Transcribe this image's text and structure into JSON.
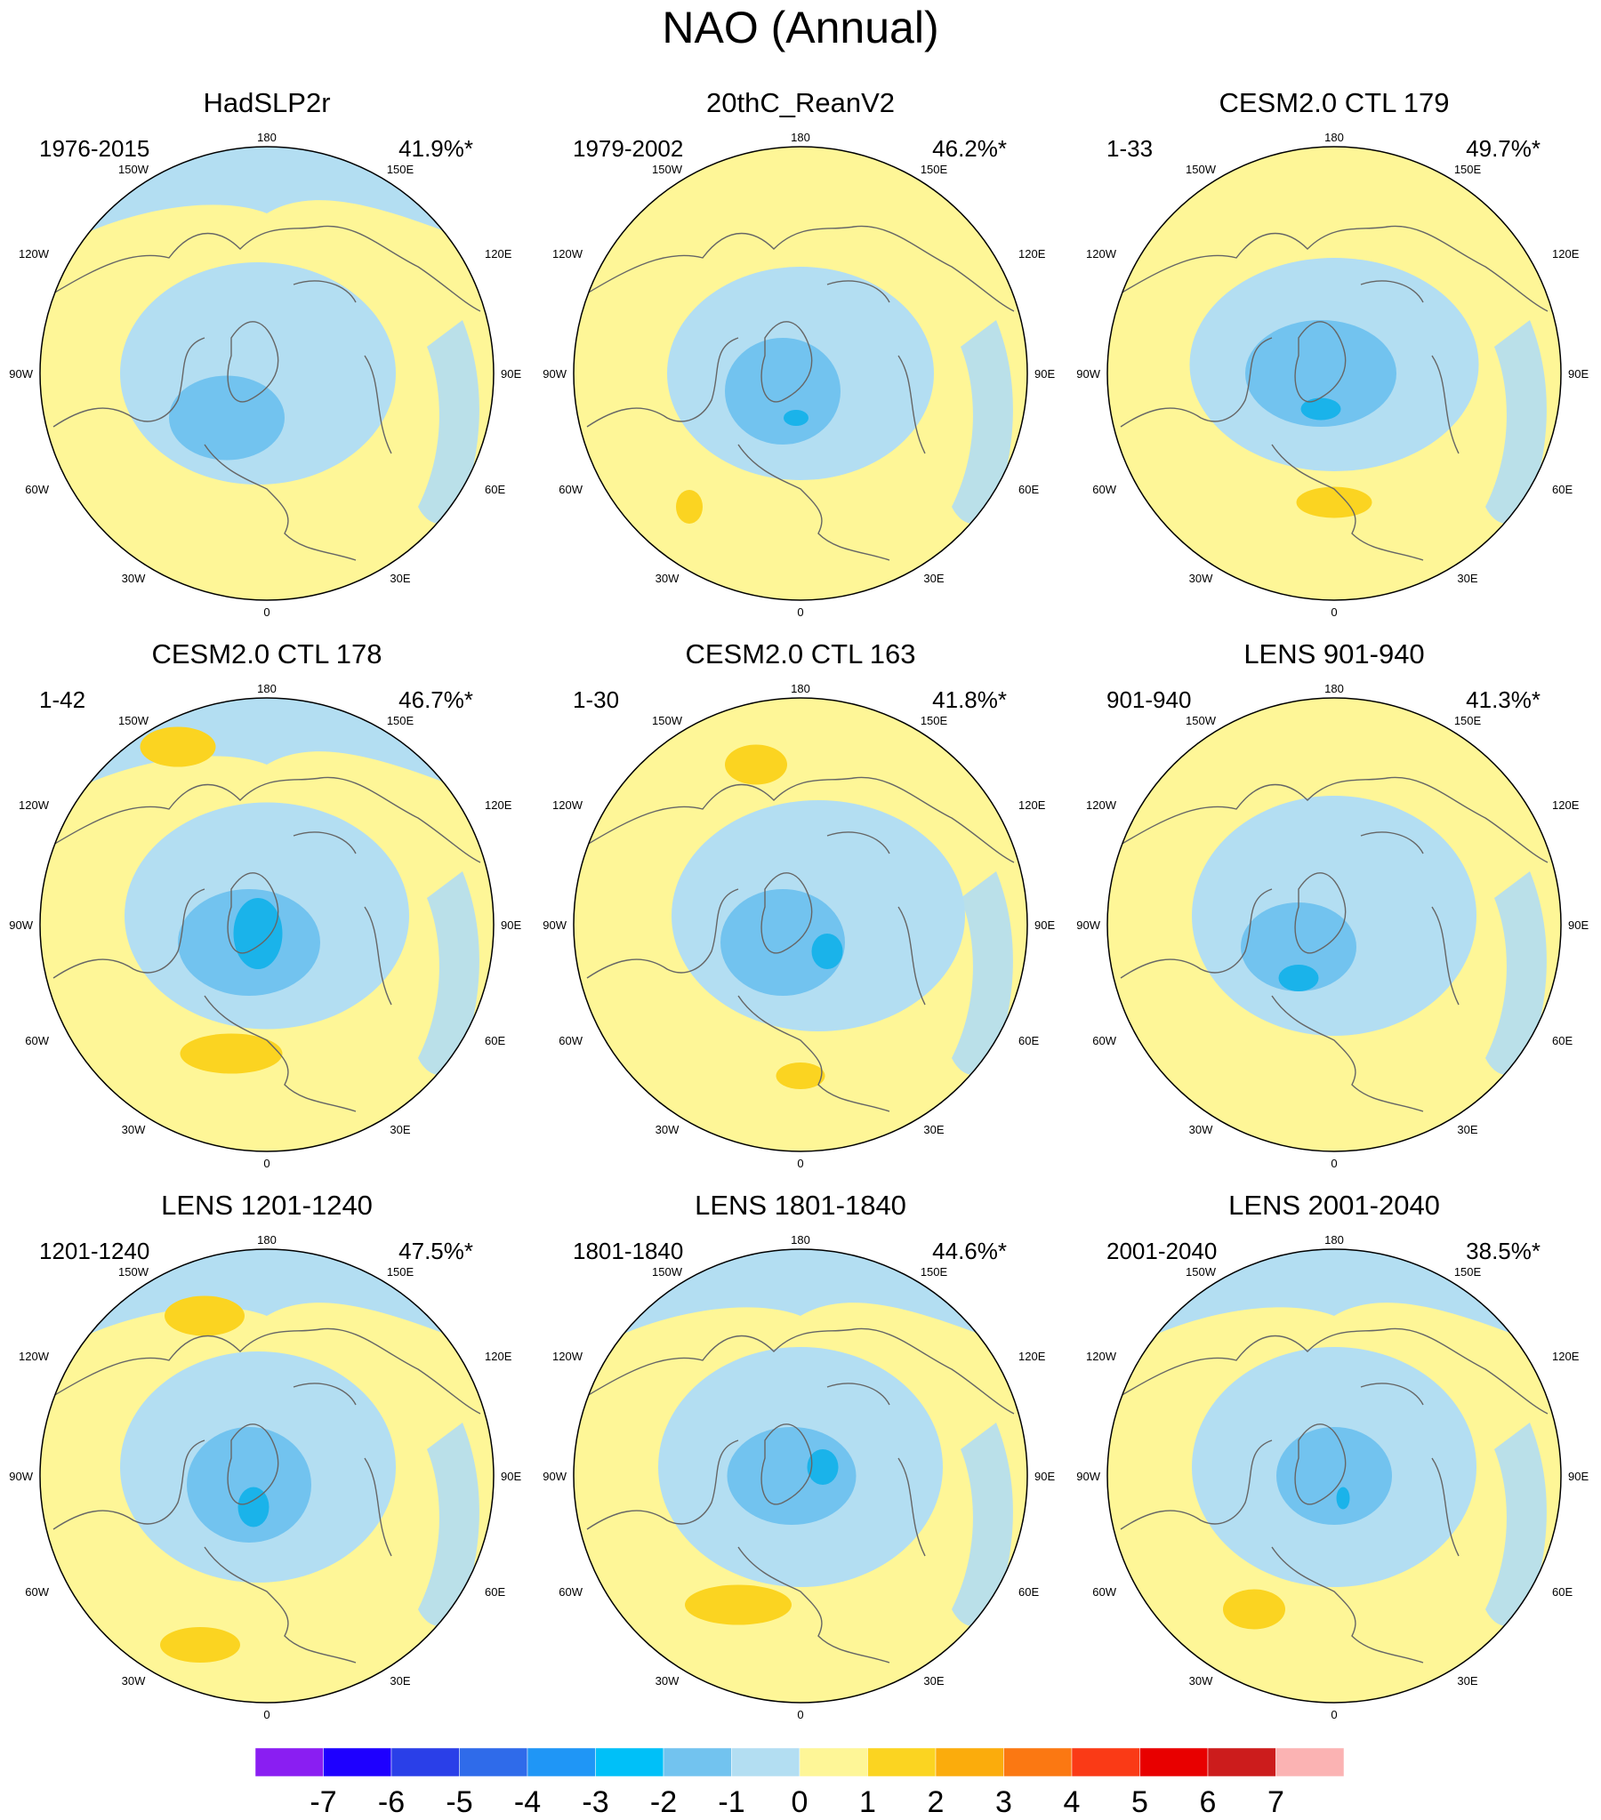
{
  "figure": {
    "title": "NAO (Annual)"
  },
  "colors": {
    "land": "#fef697",
    "ocean_neg1": "#b3def2",
    "neg2": "#72c3ef",
    "neg3": "#1ab3ea",
    "pos1": "#fbd421",
    "outline": "#000000",
    "coast": "#666666"
  },
  "longitude_labels": {
    "top": "180",
    "bottom": "0",
    "left_mid": "90W",
    "right_mid": "90E",
    "upper_left": "150W",
    "upper_right": "150E",
    "mid_left_high": "120W",
    "mid_right_high": "120E",
    "mid_left_low": "60W",
    "mid_right_low": "60E",
    "lower_left": "30W",
    "lower_right": "30E"
  },
  "panels": [
    {
      "title": "HadSLP2r",
      "period": "1976-2015",
      "variance": "41.9%*"
    },
    {
      "title": "20thC_ReanV2",
      "period": "1979-2002",
      "variance": "46.2%*"
    },
    {
      "title": "CESM2.0 CTL 179",
      "period": "1-33",
      "variance": "49.7%*"
    },
    {
      "title": "CESM2.0 CTL 178",
      "period": "1-42",
      "variance": "46.7%*"
    },
    {
      "title": "CESM2.0 CTL 163",
      "period": "1-30",
      "variance": "41.8%*"
    },
    {
      "title": "LENS 901-940",
      "period": "901-940",
      "variance": "41.3%*"
    },
    {
      "title": "LENS 1201-1240",
      "period": "1201-1240",
      "variance": "47.5%*"
    },
    {
      "title": "LENS 1801-1840",
      "period": "1801-1840",
      "variance": "44.6%*"
    },
    {
      "title": "LENS 2001-2040",
      "period": "2001-2040",
      "variance": "38.5%*"
    }
  ],
  "colorbar": {
    "labels": [
      "-7",
      "-6",
      "-5",
      "-4",
      "-3",
      "-2",
      "-1",
      "0",
      "1",
      "2",
      "3",
      "4",
      "5",
      "6",
      "7"
    ],
    "colors": [
      "#8a1ef2",
      "#1e00ff",
      "#2a3fe8",
      "#2f6bea",
      "#1f96f6",
      "#00c0f8",
      "#72c3ef",
      "#b3def2",
      "#fef697",
      "#fbd421",
      "#fbac0c",
      "#fb7812",
      "#fa3a16",
      "#e80000",
      "#cc1c1c",
      "#fbb3b3"
    ]
  }
}
